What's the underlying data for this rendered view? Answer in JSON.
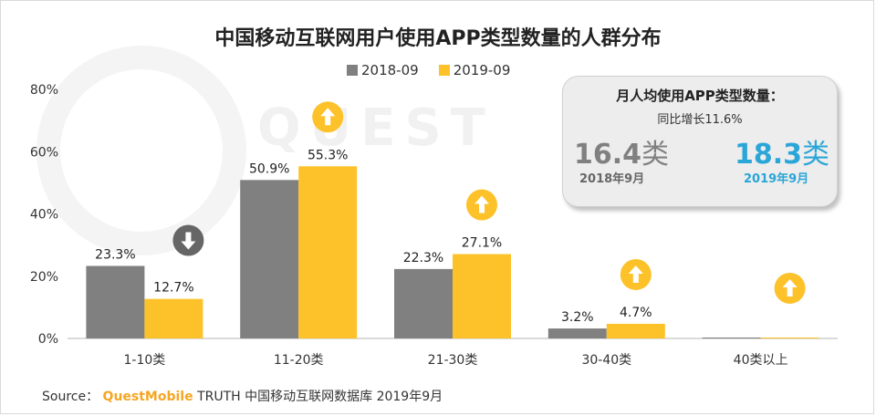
{
  "title": "中国移动互联网用户使用APP类型数量的人群分布",
  "watermark": "QUEST",
  "legend": [
    {
      "label": "2018-09",
      "color": "#808080"
    },
    {
      "label": "2019-09",
      "color": "#fdc22a"
    }
  ],
  "stat_box": {
    "title": "月人均使用APP类型数量：",
    "growth": "同比增长11.6%",
    "value_2018": "16.4",
    "value_2019": "18.3",
    "unit": "类",
    "date_2018": "2018年9月",
    "date_2019": "2019年9月"
  },
  "source": {
    "prefix": "Source：",
    "brand": "QuestMobile",
    "rest": "TRUTH 中国移动互联网数据库 2019年9月"
  },
  "chart_data": {
    "type": "bar",
    "categories": [
      "1-10类",
      "11-20类",
      "21-30类",
      "30-40类",
      "40类以上"
    ],
    "series": [
      {
        "name": "2018-09",
        "values": [
          23.3,
          50.9,
          22.3,
          3.2,
          0.3
        ],
        "labels": [
          "23.3%",
          "50.9%",
          "22.3%",
          "3.2%",
          ""
        ],
        "color": "#808080"
      },
      {
        "name": "2019-09",
        "values": [
          12.7,
          55.3,
          27.1,
          4.7,
          0.3
        ],
        "labels": [
          "12.7%",
          "55.3%",
          "27.1%",
          "4.7%",
          ""
        ],
        "color": "#fdc22a"
      }
    ],
    "trend": [
      "down",
      "up",
      "up",
      "up",
      "up"
    ],
    "yticks": [
      "0%",
      "20%",
      "40%",
      "60%",
      "80%"
    ],
    "ylim": [
      0,
      80
    ],
    "legend_position": "top-center"
  }
}
